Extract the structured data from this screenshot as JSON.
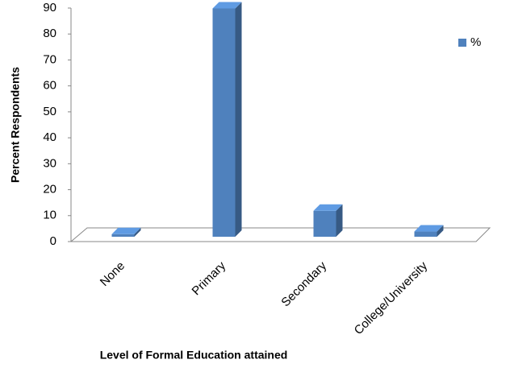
{
  "chart_data": {
    "type": "bar3d",
    "x_label": "Level of Formal Education attained",
    "y_label": "Percent Respondents",
    "categories": [
      "None",
      "Primary",
      "Secondary",
      "College/University"
    ],
    "series": [
      {
        "name": "%",
        "color": "#4f81bd",
        "values": [
          1,
          88,
          10,
          2
        ]
      }
    ],
    "ylim": [
      0,
      90
    ],
    "yticks": [
      0,
      10,
      20,
      30,
      40,
      50,
      60,
      70,
      80,
      90
    ],
    "grid": false,
    "legend": "top-right"
  }
}
